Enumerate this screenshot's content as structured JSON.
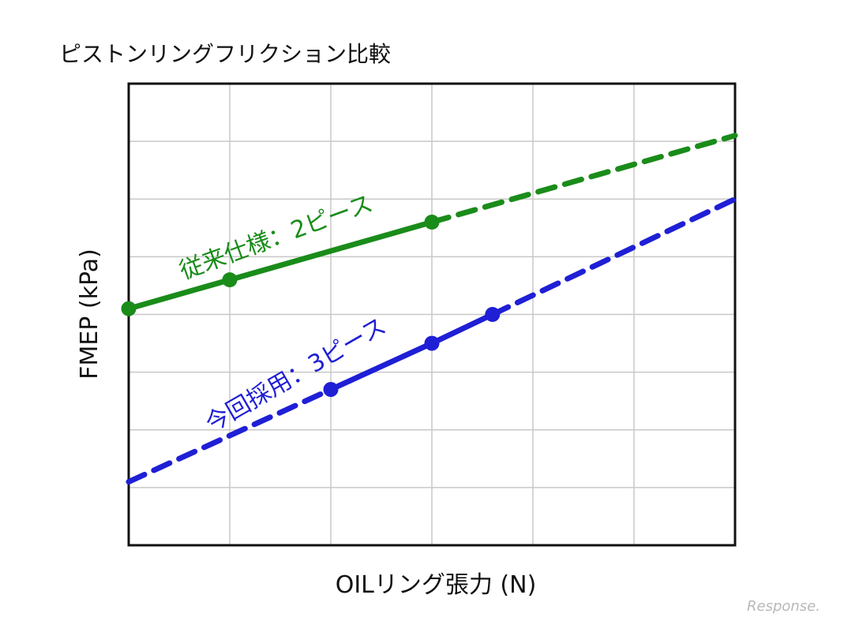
{
  "chart_data": {
    "type": "line",
    "title": "ピストンリングフリクション比較",
    "xlabel": "OILリング張力 (N)",
    "ylabel": "FMEP (kPa)",
    "xlim": [
      0,
      6
    ],
    "ylim": [
      0,
      8
    ],
    "grid": true,
    "series": [
      {
        "name": "従来仕様：2ピース",
        "color": "#1a8c1a",
        "solid_points": [
          {
            "x": 0,
            "y": 4.1
          },
          {
            "x": 1,
            "y": 4.6
          },
          {
            "x": 3,
            "y": 5.6
          }
        ],
        "dashed_extension": [
          {
            "x": 3,
            "y": 5.6
          },
          {
            "x": 6,
            "y": 7.1
          }
        ]
      },
      {
        "name": "今回採用：3ピース",
        "color": "#1f1fd6",
        "solid_points": [
          {
            "x": 2,
            "y": 2.7
          },
          {
            "x": 3,
            "y": 3.5
          },
          {
            "x": 3.6,
            "y": 4.0
          }
        ],
        "dashed_extension_before": [
          {
            "x": 0,
            "y": 1.1
          },
          {
            "x": 2,
            "y": 2.7
          }
        ],
        "dashed_extension_after": [
          {
            "x": 3.6,
            "y": 4.0
          },
          {
            "x": 6,
            "y": 6.0
          }
        ]
      }
    ]
  },
  "watermark": "Response."
}
